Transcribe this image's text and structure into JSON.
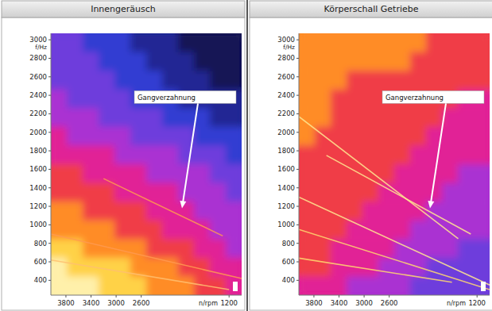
{
  "chart_data": [
    {
      "type": "heatmap",
      "title": "Innengeräusch",
      "x_label": "n/rpm",
      "y_label": "f/Hz",
      "xlim": [
        4040,
        1000
      ],
      "ylim": [
        240,
        3070
      ],
      "xticks": [
        3800,
        3400,
        3000,
        2600,
        1200
      ],
      "yticks": [
        400,
        600,
        800,
        1000,
        1200,
        1400,
        1600,
        1800,
        2000,
        2200,
        2400,
        2600,
        2800,
        3000
      ],
      "color_range": [
        0,
        10
      ],
      "cells": [
        [
          3,
          3,
          2,
          2,
          2,
          1,
          1,
          1,
          0,
          0,
          0,
          0
        ],
        [
          3,
          3,
          3,
          2,
          2,
          2,
          1,
          1,
          1,
          0,
          0,
          0
        ],
        [
          3,
          3,
          3,
          3,
          2,
          2,
          2,
          1,
          1,
          1,
          0,
          0
        ],
        [
          4,
          3,
          3,
          3,
          3,
          2,
          2,
          2,
          1,
          1,
          1,
          1
        ],
        [
          4,
          4,
          4,
          3,
          3,
          3,
          3,
          2,
          2,
          2,
          1,
          1
        ],
        [
          5,
          4,
          4,
          4,
          4,
          3,
          3,
          3,
          3,
          2,
          2,
          2
        ],
        [
          5,
          5,
          5,
          5,
          4,
          4,
          4,
          4,
          3,
          3,
          3,
          2
        ],
        [
          6,
          6,
          5,
          5,
          5,
          5,
          4,
          4,
          4,
          4,
          3,
          3
        ],
        [
          6,
          6,
          6,
          6,
          5,
          5,
          5,
          5,
          4,
          4,
          4,
          3
        ],
        [
          7,
          7,
          6,
          6,
          6,
          6,
          5,
          5,
          5,
          4,
          4,
          4
        ],
        [
          7,
          7,
          7,
          7,
          6,
          6,
          6,
          5,
          5,
          5,
          4,
          4
        ],
        [
          8,
          8,
          7,
          7,
          7,
          7,
          6,
          6,
          6,
          5,
          5,
          4
        ],
        [
          9,
          8,
          8,
          8,
          8,
          7,
          7,
          7,
          6,
          6,
          5,
          5
        ],
        [
          9,
          9,
          9,
          8,
          8,
          8,
          7,
          7,
          7,
          6,
          6,
          5
        ]
      ],
      "series": [
        {
          "color": "#ff9a50",
          "x": [
            3200,
            1300
          ],
          "values": [
            1500,
            880
          ]
        },
        {
          "color": "#ff9a50",
          "x": [
            4040,
            1000
          ],
          "values": [
            900,
            420
          ]
        },
        {
          "color": "#ffc070",
          "x": [
            4040,
            1200
          ],
          "values": [
            620,
            300
          ]
        }
      ],
      "annotations": [
        {
          "text": "Gangverzahnung",
          "x": 1950,
          "y": 1180
        }
      ]
    },
    {
      "type": "heatmap",
      "title": "Körperschall Getriebe",
      "x_label": "n/rpm",
      "y_label": "f/Hz",
      "xlim": [
        4040,
        1000
      ],
      "ylim": [
        240,
        3070
      ],
      "xticks": [
        3800,
        3400,
        3000,
        2600,
        1200
      ],
      "yticks": [
        400,
        600,
        800,
        1000,
        1200,
        1400,
        1600,
        1800,
        2000,
        2200,
        2400,
        2600,
        2800,
        3000
      ],
      "color_range": [
        0,
        10
      ],
      "cells": [
        [
          7,
          7,
          7,
          7,
          7,
          7,
          7,
          7,
          6,
          6,
          6,
          6
        ],
        [
          7,
          7,
          7,
          7,
          7,
          7,
          7,
          6,
          6,
          6,
          6,
          6
        ],
        [
          7,
          7,
          7,
          6,
          6,
          6,
          6,
          6,
          6,
          6,
          6,
          6
        ],
        [
          7,
          7,
          6,
          6,
          6,
          6,
          6,
          6,
          6,
          6,
          5,
          5
        ],
        [
          7,
          7,
          6,
          6,
          6,
          6,
          6,
          6,
          6,
          5,
          5,
          5
        ],
        [
          7,
          6,
          6,
          6,
          6,
          6,
          6,
          6,
          5,
          5,
          5,
          5
        ],
        [
          6,
          6,
          6,
          6,
          6,
          6,
          6,
          5,
          5,
          5,
          5,
          5
        ],
        [
          6,
          6,
          6,
          6,
          6,
          6,
          5,
          5,
          5,
          5,
          4,
          4
        ],
        [
          6,
          6,
          6,
          6,
          6,
          5,
          5,
          5,
          5,
          4,
          4,
          4
        ],
        [
          6,
          6,
          6,
          6,
          5,
          5,
          5,
          5,
          4,
          4,
          4,
          4
        ],
        [
          6,
          6,
          6,
          5,
          5,
          5,
          5,
          4,
          4,
          4,
          4,
          4
        ],
        [
          6,
          6,
          5,
          5,
          5,
          5,
          4,
          4,
          4,
          4,
          3,
          3
        ],
        [
          6,
          6,
          5,
          5,
          5,
          4,
          4,
          4,
          3,
          3,
          3,
          3
        ],
        [
          5,
          5,
          5,
          4,
          4,
          4,
          4,
          3,
          3,
          3,
          3,
          3
        ]
      ],
      "series": [
        {
          "color": "#ffe890",
          "x": [
            4040,
            1500
          ],
          "values": [
            2170,
            850
          ]
        },
        {
          "color": "#ffe890",
          "x": [
            3600,
            1300
          ],
          "values": [
            1750,
            900
          ]
        },
        {
          "color": "#ffe890",
          "x": [
            4040,
            1000
          ],
          "values": [
            1300,
            350
          ]
        },
        {
          "color": "#ffd870",
          "x": [
            4040,
            1000
          ],
          "values": [
            950,
            300
          ]
        },
        {
          "color": "#ffd870",
          "x": [
            4040,
            1600
          ],
          "values": [
            640,
            380
          ]
        }
      ],
      "annotations": [
        {
          "text": "Gangverzahnung",
          "x": 1950,
          "y": 1180
        }
      ]
    }
  ]
}
